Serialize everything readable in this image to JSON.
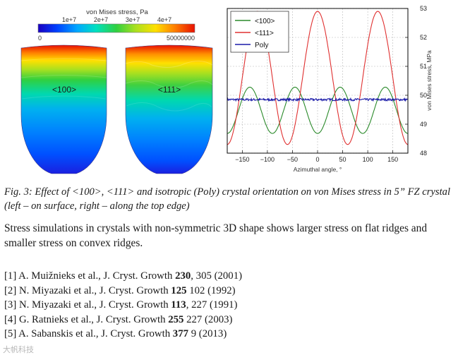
{
  "figure": {
    "colorbar": {
      "title": "von Mises stress, Pa",
      "tick_labels": [
        "1e+7",
        "2e+7",
        "3e+7",
        "4e+7"
      ],
      "min_label": "0",
      "max_label": "50000000",
      "colors": [
        "#1a00c0",
        "#0040ff",
        "#00a8ff",
        "#00e0c0",
        "#30d040",
        "#a8e020",
        "#ffe000",
        "#ff8000",
        "#e81000"
      ]
    },
    "crystals": [
      {
        "label": "<100>"
      },
      {
        "label": "<111>"
      }
    ]
  },
  "chart_data": {
    "type": "line",
    "title": "",
    "xlabel": "Azimuthal angle, °",
    "ylabel": "von Mises stress, MPa",
    "xlim": [
      -180,
      180
    ],
    "ylim": [
      48,
      53
    ],
    "xticks": [
      -150,
      -100,
      -50,
      0,
      50,
      100,
      150
    ],
    "yticks": [
      48,
      49,
      50,
      51,
      52,
      53
    ],
    "yaxis_side": "right",
    "grid": true,
    "legend_position": "top-left",
    "series": [
      {
        "name": "<100>",
        "color": "#2a8a2a",
        "model": "cos",
        "mean": 49.48,
        "amplitude": 0.8,
        "period_deg": 90,
        "phase_deg": 45
      },
      {
        "name": "<111>",
        "color": "#e03030",
        "model": "cos",
        "mean": 50.6,
        "amplitude": 2.3,
        "period_deg": 120,
        "phase_deg": 0
      },
      {
        "name": "Poly",
        "color": "#1a1aa8",
        "model": "flat",
        "mean": 49.85,
        "noise": 0.04
      }
    ]
  },
  "caption": "Fig. 3: Effect of <100>, <111> and isotropic (Poly) crystal orientation on von Mises stress in 5” FZ crystal (left – on surface, right – along the top edge)",
  "summary": "Stress simulations in crystals with non-symmetric 3D shape shows larger stress on flat ridges and smaller stress on convex ridges.",
  "references": [
    {
      "prefix": "[1] A. Muižnieks et al., J. Cryst. Growth ",
      "volume": "230",
      "suffix": ", 305 (2001)"
    },
    {
      "prefix": "[2] N. Miyazaki et al., J. Cryst. Growth ",
      "volume": "125",
      "suffix": " 102 (1992)"
    },
    {
      "prefix": "[3] N. Miyazaki et al., J. Cryst. Growth ",
      "volume": "113",
      "suffix": ", 227 (1991)"
    },
    {
      "prefix": "[4] G. Ratnieks et al., J. Cryst. Growth ",
      "volume": "255",
      "suffix": " 227 (2003)"
    },
    {
      "prefix": "[5] A. Sabanskis et al., J. Cryst. Growth ",
      "volume": "377",
      "suffix": " 9 (2013)"
    }
  ],
  "watermark": "大帆科技"
}
